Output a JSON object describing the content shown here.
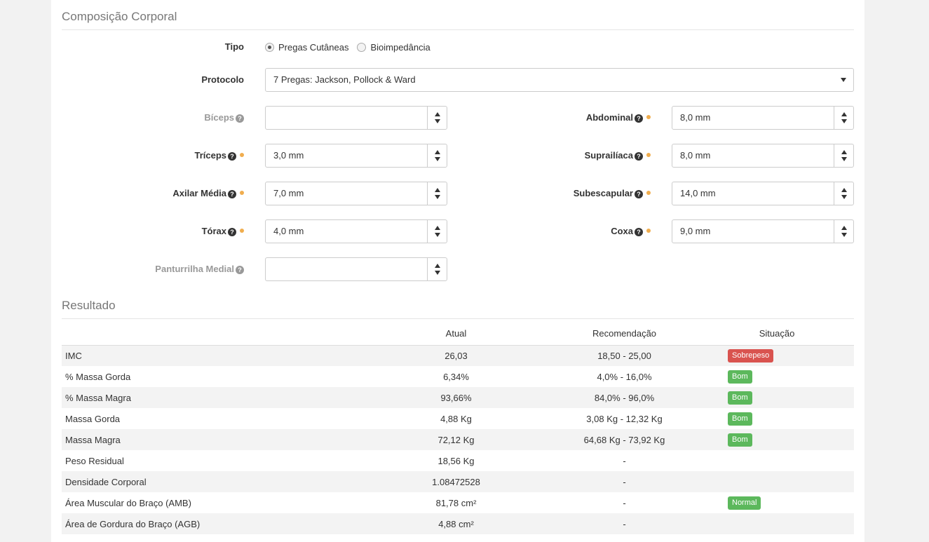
{
  "composicao": {
    "title": "Composição Corporal",
    "tipo_label": "Tipo",
    "tipo_options": [
      {
        "label": "Pregas Cutâneas",
        "selected": true
      },
      {
        "label": "Bioimpedância",
        "selected": false
      }
    ],
    "protocolo_label": "Protocolo",
    "protocolo_value": "7 Pregas: Jackson, Pollock & Ward",
    "left_fields": [
      {
        "label": "Bíceps",
        "value": "",
        "required": false
      },
      {
        "label": "Tríceps",
        "value": "3,0 mm",
        "required": true
      },
      {
        "label": "Axilar Média",
        "value": "7,0 mm",
        "required": true
      },
      {
        "label": "Tórax",
        "value": "4,0 mm",
        "required": true
      },
      {
        "label": "Panturrilha Medial",
        "value": "",
        "required": false
      }
    ],
    "right_fields": [
      {
        "label": "Abdominal",
        "value": "8,0 mm",
        "required": true
      },
      {
        "label": "Suprailíaca",
        "value": "8,0 mm",
        "required": true
      },
      {
        "label": "Subescapular",
        "value": "14,0 mm",
        "required": true
      },
      {
        "label": "Coxa",
        "value": "9,0 mm",
        "required": true
      }
    ]
  },
  "resultado": {
    "title": "Resultado",
    "headers": [
      "",
      "Atual",
      "Recomendação",
      "Situação"
    ],
    "rows": [
      {
        "name": "IMC",
        "atual": "26,03",
        "rec": "18,50 - 25,00",
        "sit": "Sobrepeso",
        "sit_color": "#d9534f"
      },
      {
        "name": "% Massa Gorda",
        "atual": "6,34%",
        "rec": "4,0% - 16,0%",
        "sit": "Bom",
        "sit_color": "#5cb85c"
      },
      {
        "name": "% Massa Magra",
        "atual": "93,66%",
        "rec": "84,0% - 96,0%",
        "sit": "Bom",
        "sit_color": "#5cb85c"
      },
      {
        "name": "Massa Gorda",
        "atual": "4,88 Kg",
        "rec": "3,08 Kg - 12,32 Kg",
        "sit": "Bom",
        "sit_color": "#5cb85c"
      },
      {
        "name": "Massa Magra",
        "atual": "72,12 Kg",
        "rec": "64,68 Kg - 73,92 Kg",
        "sit": "Bom",
        "sit_color": "#5cb85c"
      },
      {
        "name": "Peso Residual",
        "atual": "18,56 Kg",
        "rec": "-",
        "sit": "",
        "sit_color": ""
      },
      {
        "name": "Densidade Corporal",
        "atual": "1.08472528",
        "rec": "-",
        "sit": "",
        "sit_color": ""
      },
      {
        "name": "Área Muscular do Braço (AMB)",
        "atual": "81,78 cm²",
        "rec": "-",
        "sit": "Normal",
        "sit_color": "#5cb85c"
      },
      {
        "name": "Área de Gordura do Braço (AGB)",
        "atual": "4,88 cm²",
        "rec": "-",
        "sit": "",
        "sit_color": ""
      }
    ]
  },
  "icons": {
    "help": "question-circle-icon",
    "required": "orange-dot-icon"
  }
}
